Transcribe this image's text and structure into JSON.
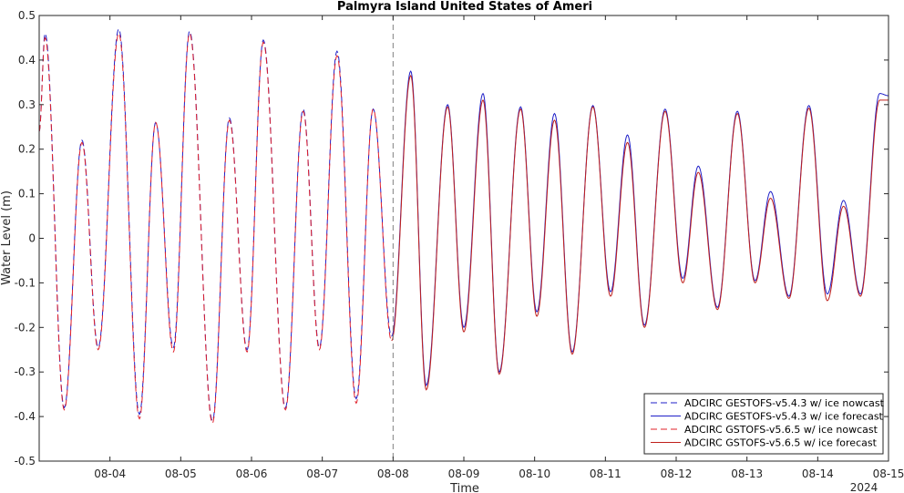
{
  "chart_data": {
    "type": "line",
    "title": "Palmyra Island United States of Ameri",
    "xlabel": "Time",
    "ylabel": "Water Level (m)",
    "year_label": "2024",
    "xlim": [
      "2024-08-03",
      "2024-08-15"
    ],
    "ylim": [
      -0.5,
      0.5
    ],
    "y_ticks": [
      0.5,
      0.4,
      0.3,
      0.2,
      0.1,
      0,
      -0.1,
      -0.2,
      -0.3,
      -0.4,
      -0.5
    ],
    "y_tick_labels": [
      "0.5",
      "0.4",
      "0.3",
      "0.2",
      "0.1",
      "0",
      "-0.1",
      "-0.2",
      "-0.3",
      "-0.4",
      "-0.5"
    ],
    "x_ticks": [
      "2024-08-04",
      "2024-08-05",
      "2024-08-06",
      "2024-08-07",
      "2024-08-08",
      "2024-08-09",
      "2024-08-10",
      "2024-08-11",
      "2024-08-12",
      "2024-08-13",
      "2024-08-14",
      "2024-08-15"
    ],
    "x_tick_labels": [
      "08-04",
      "08-05",
      "08-06",
      "08-07",
      "08-08",
      "08-09",
      "08-10",
      "08-11",
      "08-12",
      "08-13",
      "08-14",
      "08-15"
    ],
    "nowcast_forecast_boundary": "2024-08-08",
    "grid": false,
    "legend_position": "bottom-right",
    "extrema": {
      "time": [
        "2024-08-03 00:00",
        "2024-08-03 02:00",
        "2024-08-03 08:30",
        "2024-08-03 14:30",
        "2024-08-03 20:00",
        "2024-08-04 03:00",
        "2024-08-04 10:00",
        "2024-08-04 15:30",
        "2024-08-04 21:30",
        "2024-08-05 03:00",
        "2024-08-05 10:45",
        "2024-08-05 16:30",
        "2024-08-05 22:30",
        "2024-08-06 04:00",
        "2024-08-06 11:30",
        "2024-08-06 17:30",
        "2024-08-06 23:00",
        "2024-08-07 05:00",
        "2024-08-07 11:30",
        "2024-08-07 17:15",
        "2024-08-07 23:30",
        "2024-08-08 06:00",
        "2024-08-08 11:15",
        "2024-08-08 18:30",
        "2024-08-09 00:00",
        "2024-08-09 06:30",
        "2024-08-09 12:00",
        "2024-08-09 19:15",
        "2024-08-10 00:45",
        "2024-08-10 06:45",
        "2024-08-10 12:45",
        "2024-08-10 19:45",
        "2024-08-11 01:45",
        "2024-08-11 07:30",
        "2024-08-11 13:15",
        "2024-08-11 20:15",
        "2024-08-12 02:15",
        "2024-08-12 07:30",
        "2024-08-12 14:00",
        "2024-08-12 20:45",
        "2024-08-13 02:45",
        "2024-08-13 08:00",
        "2024-08-13 14:15",
        "2024-08-13 21:00",
        "2024-08-14 03:15",
        "2024-08-14 08:45",
        "2024-08-14 14:30",
        "2024-08-14 21:00",
        "2024-08-15 00:00"
      ],
      "gestofs_v543_nowcast": [
        0.24,
        0.46,
        -0.38,
        0.22,
        -0.245,
        0.47,
        -0.395,
        0.26,
        -0.245,
        0.465,
        -0.41,
        0.27,
        -0.25,
        0.445,
        -0.38,
        0.29,
        -0.245,
        0.42,
        -0.36,
        0.29,
        -0.22,
        null,
        null,
        null,
        null,
        null,
        null,
        null,
        null,
        null,
        null,
        null,
        null,
        null,
        null,
        null,
        null,
        null,
        null,
        null,
        null,
        null,
        null,
        null,
        null,
        null,
        null,
        null,
        null
      ],
      "gestofs_v543_forecast": [
        null,
        null,
        null,
        null,
        null,
        null,
        null,
        null,
        null,
        null,
        null,
        null,
        null,
        null,
        null,
        null,
        null,
        null,
        null,
        null,
        -0.22,
        0.375,
        -0.33,
        0.3,
        -0.2,
        0.325,
        -0.3,
        0.295,
        -0.165,
        0.28,
        -0.255,
        0.298,
        -0.12,
        0.232,
        -0.195,
        0.29,
        -0.09,
        0.162,
        -0.155,
        0.285,
        -0.095,
        0.105,
        -0.13,
        0.298,
        -0.125,
        0.085,
        -0.125,
        0.325,
        0.32
      ],
      "gstofs_v565_nowcast": [
        0.24,
        0.45,
        -0.385,
        0.215,
        -0.25,
        0.46,
        -0.405,
        0.26,
        -0.255,
        0.46,
        -0.415,
        0.265,
        -0.255,
        0.44,
        -0.385,
        0.285,
        -0.25,
        0.41,
        -0.37,
        0.29,
        -0.23,
        null,
        null,
        null,
        null,
        null,
        null,
        null,
        null,
        null,
        null,
        null,
        null,
        null,
        null,
        null,
        null,
        null,
        null,
        null,
        null,
        null,
        null,
        null,
        null,
        null,
        null,
        null,
        null
      ],
      "gstofs_v565_forecast": [
        null,
        null,
        null,
        null,
        null,
        null,
        null,
        null,
        null,
        null,
        null,
        null,
        null,
        null,
        null,
        null,
        null,
        null,
        null,
        null,
        -0.23,
        0.365,
        -0.34,
        0.295,
        -0.21,
        0.31,
        -0.305,
        0.29,
        -0.175,
        0.265,
        -0.26,
        0.295,
        -0.13,
        0.215,
        -0.2,
        0.285,
        -0.1,
        0.148,
        -0.16,
        0.28,
        -0.1,
        0.09,
        -0.135,
        0.292,
        -0.14,
        0.072,
        -0.13,
        0.31,
        0.31
      ]
    },
    "series": [
      {
        "name": "ADCIRC GESTOFS-v5.4.3 w/ ice nowcast",
        "key": "gestofs_v543_nowcast",
        "color": "#1f1fc8",
        "dash": true
      },
      {
        "name": "ADCIRC GESTOFS-v5.4.3 w/ ice forecast",
        "key": "gestofs_v543_forecast",
        "color": "#1f1fc8",
        "dash": false
      },
      {
        "name": "ADCIRC GSTOFS-v5.6.5 w/ ice nowcast",
        "key": "gstofs_v565_nowcast",
        "color": "#e0202a",
        "dash": true
      },
      {
        "name": "ADCIRC GSTOFS-v5.6.5 w/ ice forecast",
        "key": "gstofs_v565_forecast",
        "color": "#c0201c",
        "dash": false
      }
    ]
  }
}
